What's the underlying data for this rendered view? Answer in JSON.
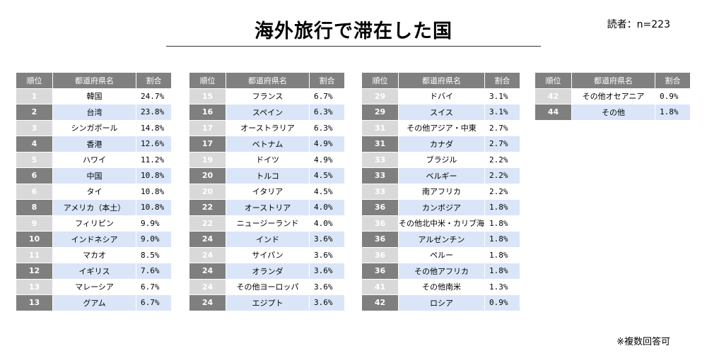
{
  "header": {
    "title": "海外旅行で滞在した国",
    "readers": "読者：n=223",
    "footnote": "※複数回答可"
  },
  "table_headers": [
    "順位",
    "都道府県名",
    "割合"
  ],
  "chart_data": {
    "type": "table",
    "title": "海外旅行で滞在した国",
    "columns": [
      "順位",
      "都道府県名",
      "割合"
    ],
    "tables": [
      [
        {
          "rank": "1",
          "name": "韓国",
          "pct": "24.7%"
        },
        {
          "rank": "2",
          "name": "台湾",
          "pct": "23.8%"
        },
        {
          "rank": "3",
          "name": "シンガポール",
          "pct": "14.8%"
        },
        {
          "rank": "4",
          "name": "香港",
          "pct": "12.6%"
        },
        {
          "rank": "5",
          "name": "ハワイ",
          "pct": "11.2%"
        },
        {
          "rank": "6",
          "name": "中国",
          "pct": "10.8%"
        },
        {
          "rank": "6",
          "name": "タイ",
          "pct": "10.8%"
        },
        {
          "rank": "8",
          "name": "アメリカ（本土）",
          "pct": "10.8%"
        },
        {
          "rank": "9",
          "name": "フィリピン",
          "pct": "9.9%"
        },
        {
          "rank": "10",
          "name": "インドネシア",
          "pct": "9.0%"
        },
        {
          "rank": "11",
          "name": "マカオ",
          "pct": "8.5%"
        },
        {
          "rank": "12",
          "name": "イギリス",
          "pct": "7.6%"
        },
        {
          "rank": "13",
          "name": "マレーシア",
          "pct": "6.7%"
        },
        {
          "rank": "13",
          "name": "グアム",
          "pct": "6.7%"
        }
      ],
      [
        {
          "rank": "15",
          "name": "フランス",
          "pct": "6.7%"
        },
        {
          "rank": "16",
          "name": "スペイン",
          "pct": "6.3%"
        },
        {
          "rank": "17",
          "name": "オーストラリア",
          "pct": "6.3%"
        },
        {
          "rank": "17",
          "name": "ベトナム",
          "pct": "4.9%"
        },
        {
          "rank": "19",
          "name": "ドイツ",
          "pct": "4.9%"
        },
        {
          "rank": "20",
          "name": "トルコ",
          "pct": "4.5%"
        },
        {
          "rank": "20",
          "name": "イタリア",
          "pct": "4.5%"
        },
        {
          "rank": "22",
          "name": "オーストリア",
          "pct": "4.0%"
        },
        {
          "rank": "22",
          "name": "ニュージーランド",
          "pct": "4.0%"
        },
        {
          "rank": "24",
          "name": "インド",
          "pct": "3.6%"
        },
        {
          "rank": "24",
          "name": "サイパン",
          "pct": "3.6%"
        },
        {
          "rank": "24",
          "name": "オランダ",
          "pct": "3.6%"
        },
        {
          "rank": "24",
          "name": "その他ヨーロッパ",
          "pct": "3.6%"
        },
        {
          "rank": "24",
          "name": "エジプト",
          "pct": "3.6%"
        }
      ],
      [
        {
          "rank": "29",
          "name": "ドバイ",
          "pct": "3.1%"
        },
        {
          "rank": "29",
          "name": "スイス",
          "pct": "3.1%"
        },
        {
          "rank": "31",
          "name": "その他アジア・中東",
          "pct": "2.7%"
        },
        {
          "rank": "31",
          "name": "カナダ",
          "pct": "2.7%"
        },
        {
          "rank": "33",
          "name": "ブラジル",
          "pct": "2.2%"
        },
        {
          "rank": "33",
          "name": "ベルギー",
          "pct": "2.2%"
        },
        {
          "rank": "33",
          "name": "南アフリカ",
          "pct": "2.2%"
        },
        {
          "rank": "36",
          "name": "カンボジア",
          "pct": "1.8%"
        },
        {
          "rank": "36",
          "name": "その他北中米・カリブ海",
          "pct": "1.8%"
        },
        {
          "rank": "36",
          "name": "アルゼンチン",
          "pct": "1.8%"
        },
        {
          "rank": "36",
          "name": "ペルー",
          "pct": "1.8%"
        },
        {
          "rank": "36",
          "name": "その他アフリカ",
          "pct": "1.8%"
        },
        {
          "rank": "41",
          "name": "その他南米",
          "pct": "1.3%"
        },
        {
          "rank": "42",
          "name": "ロシア",
          "pct": "0.9%"
        }
      ],
      [
        {
          "rank": "42",
          "name": "その他オセアニア",
          "pct": "0.9%"
        },
        {
          "rank": "44",
          "name": "その他",
          "pct": "1.8%"
        }
      ]
    ]
  }
}
